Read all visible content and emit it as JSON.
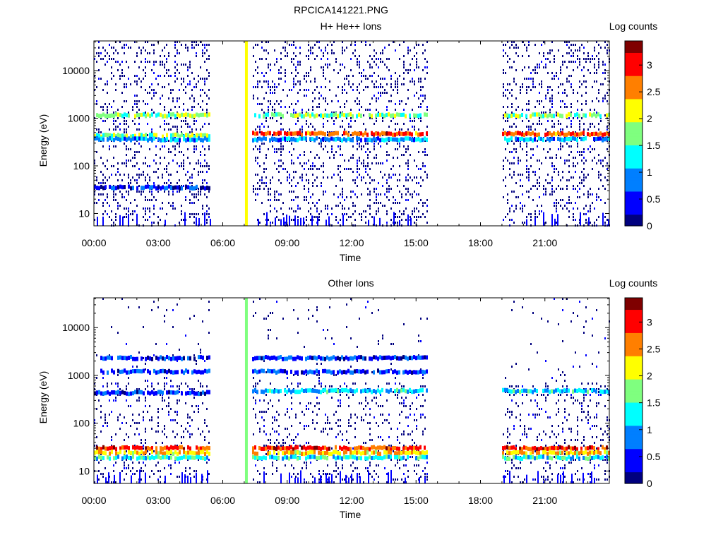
{
  "figure": {
    "title": "RPCICA141221.PNG"
  },
  "colorscale": [
    "#00007f",
    "#0000ff",
    "#007fff",
    "#00ffff",
    "#7fff7f",
    "#ffff00",
    "#ff7f00",
    "#ff0000",
    "#7f0000"
  ],
  "chart_data": [
    {
      "type": "heatmap",
      "title": "H+ He++ Ions",
      "xlabel": "Time",
      "ylabel": "Energy (eV)",
      "xlim": [
        0,
        24
      ],
      "ylim": [
        5.5,
        42000
      ],
      "yscale": "log",
      "x_ticks": [
        {
          "value": 0,
          "label": "00:00"
        },
        {
          "value": 3,
          "label": "03:00"
        },
        {
          "value": 6,
          "label": "06:00"
        },
        {
          "value": 9,
          "label": "09:00"
        },
        {
          "value": 12,
          "label": "12:00"
        },
        {
          "value": 15,
          "label": "15:00"
        },
        {
          "value": 18,
          "label": "18:00"
        },
        {
          "value": 21,
          "label": "21:00"
        }
      ],
      "y_ticks": [
        {
          "value": 10,
          "label": "10"
        },
        {
          "value": 100,
          "label": "100"
        },
        {
          "value": 1000,
          "label": "1000"
        },
        {
          "value": 10000,
          "label": "10000"
        }
      ],
      "colorbar": {
        "label": "Log counts",
        "min": 0,
        "max": 3.45,
        "ticks": [
          {
            "value": 0,
            "label": "0"
          },
          {
            "value": 0.5,
            "label": "0.5"
          },
          {
            "value": 1,
            "label": "1"
          },
          {
            "value": 1.5,
            "label": "1.5"
          },
          {
            "value": 2,
            "label": "2"
          },
          {
            "value": 2.5,
            "label": "2.5"
          },
          {
            "value": 3,
            "label": "3"
          }
        ]
      },
      "data_intervals": [
        [
          0,
          5.4
        ],
        [
          7.35,
          15.5
        ],
        [
          19.0,
          24.0
        ]
      ],
      "spike": {
        "time": 7.1,
        "from": 5.5,
        "to": 42000,
        "level": 2.2
      },
      "bands": [
        {
          "energy": 1150,
          "level": 1.7,
          "intervals": [
            [
              0,
              5.4
            ],
            [
              7.35,
              15.5
            ],
            [
              19.0,
              24.0
            ]
          ]
        },
        {
          "energy": 470,
          "level": 2.8,
          "intervals": [
            [
              7.35,
              15.5
            ],
            [
              19.0,
              24.0
            ]
          ]
        },
        {
          "energy": 430,
          "level": 1.8,
          "intervals": [
            [
              0,
              5.4
            ]
          ]
        },
        {
          "energy": 360,
          "level": 1.0,
          "intervals": [
            [
              0,
              5.4
            ],
            [
              7.35,
              15.5
            ],
            [
              19.0,
              24.0
            ]
          ]
        },
        {
          "energy": 35,
          "level": 0.5,
          "intervals": [
            [
              0,
              5.4
            ]
          ]
        }
      ]
    },
    {
      "type": "heatmap",
      "title": "Other Ions",
      "xlabel": "Time",
      "ylabel": "Energy (eV)",
      "xlim": [
        0,
        24
      ],
      "ylim": [
        5.5,
        42000
      ],
      "yscale": "log",
      "x_ticks": [
        {
          "value": 0,
          "label": "00:00"
        },
        {
          "value": 3,
          "label": "03:00"
        },
        {
          "value": 6,
          "label": "06:00"
        },
        {
          "value": 9,
          "label": "09:00"
        },
        {
          "value": 12,
          "label": "12:00"
        },
        {
          "value": 15,
          "label": "15:00"
        },
        {
          "value": 18,
          "label": "18:00"
        },
        {
          "value": 21,
          "label": "21:00"
        }
      ],
      "y_ticks": [
        {
          "value": 10,
          "label": "10"
        },
        {
          "value": 100,
          "label": "100"
        },
        {
          "value": 1000,
          "label": "1000"
        },
        {
          "value": 10000,
          "label": "10000"
        }
      ],
      "colorbar": {
        "label": "Log counts",
        "min": 0,
        "max": 3.45,
        "ticks": [
          {
            "value": 0,
            "label": "0"
          },
          {
            "value": 0.5,
            "label": "0.5"
          },
          {
            "value": 1,
            "label": "1"
          },
          {
            "value": 1.5,
            "label": "1.5"
          },
          {
            "value": 2,
            "label": "2"
          },
          {
            "value": 2.5,
            "label": "2.5"
          },
          {
            "value": 3,
            "label": "3"
          }
        ]
      },
      "data_intervals": [
        [
          0,
          5.4
        ],
        [
          7.35,
          15.5
        ],
        [
          19.0,
          24.0
        ]
      ],
      "spike": {
        "time": 7.1,
        "from": 5.5,
        "to": 42000,
        "level": 1.6
      },
      "bands": [
        {
          "energy": 2300,
          "level": 0.5,
          "intervals": [
            [
              0.3,
              5.4
            ],
            [
              7.35,
              15.5
            ]
          ]
        },
        {
          "energy": 1200,
          "level": 0.6,
          "intervals": [
            [
              0.3,
              5.4
            ],
            [
              7.35,
              15.5
            ]
          ]
        },
        {
          "energy": 470,
          "level": 1.2,
          "intervals": [
            [
              7.35,
              15.5
            ],
            [
              19.0,
              24.0
            ]
          ]
        },
        {
          "energy": 430,
          "level": 0.6,
          "intervals": [
            [
              0,
              5.4
            ]
          ]
        },
        {
          "energy": 30,
          "level": 2.9,
          "intervals": [
            [
              0,
              5.4
            ],
            [
              7.35,
              15.5
            ],
            [
              19.0,
              24.0
            ]
          ]
        },
        {
          "energy": 24,
          "level": 2.3,
          "intervals": [
            [
              0,
              5.4
            ],
            [
              7.35,
              15.5
            ],
            [
              19.0,
              24.0
            ]
          ]
        },
        {
          "energy": 19,
          "level": 1.3,
          "intervals": [
            [
              0,
              5.4
            ],
            [
              7.35,
              15.5
            ],
            [
              19.0,
              24.0
            ]
          ]
        }
      ]
    }
  ]
}
